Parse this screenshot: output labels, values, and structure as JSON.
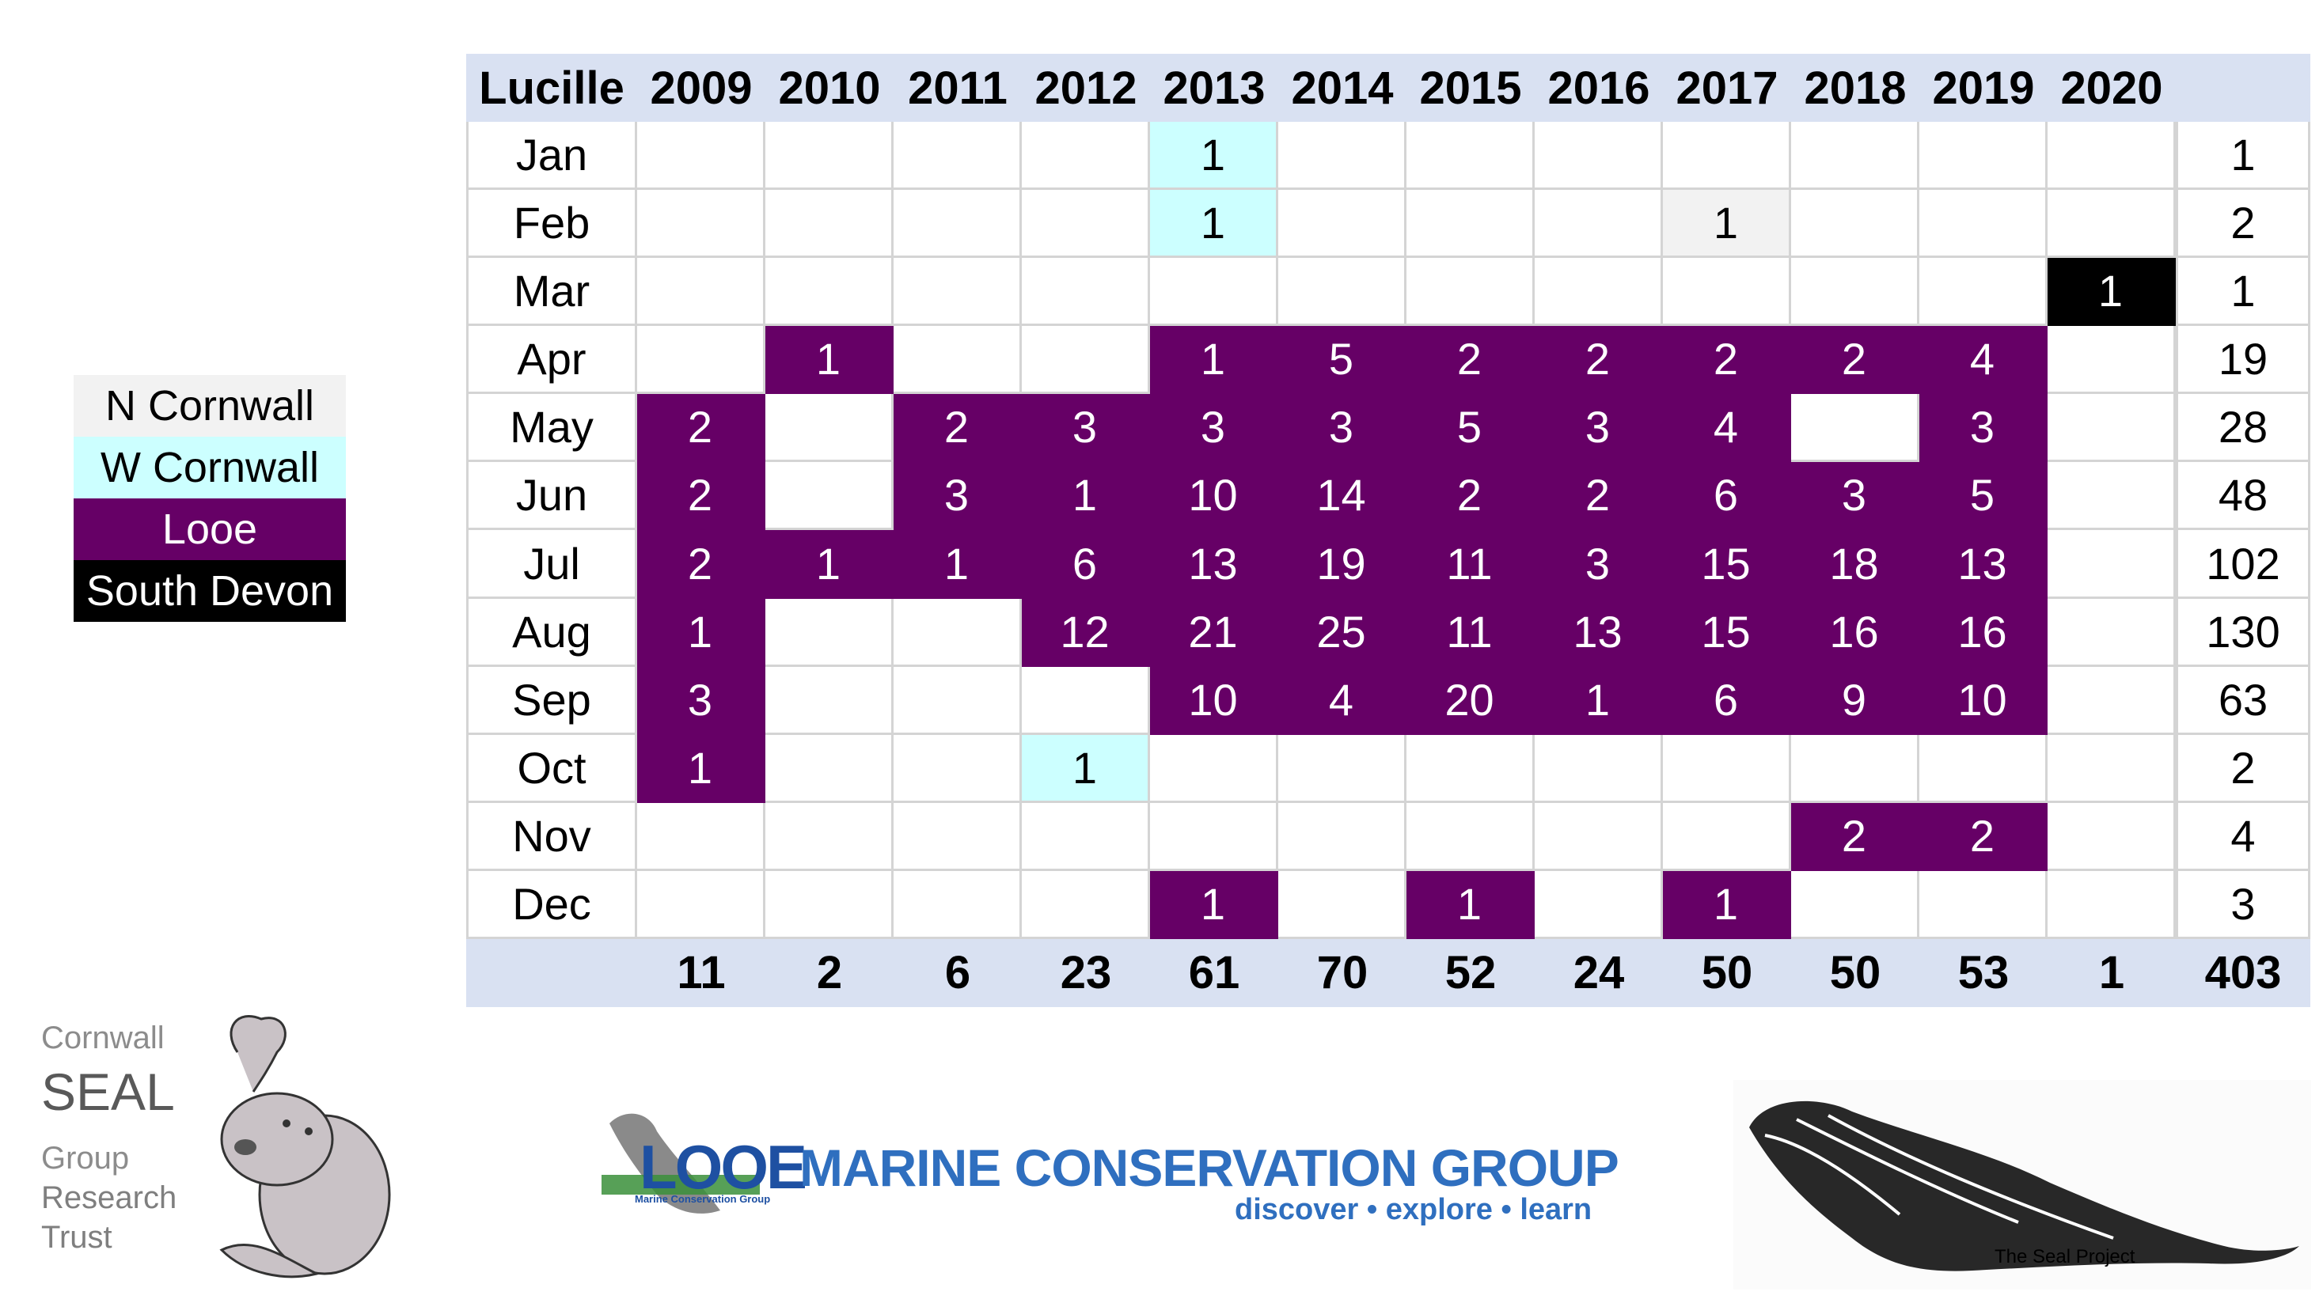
{
  "table": {
    "corner_label": "Lucille",
    "years": [
      "2009",
      "2010",
      "2011",
      "2012",
      "2013",
      "2014",
      "2015",
      "2016",
      "2017",
      "2018",
      "2019",
      "2020"
    ],
    "rows": [
      {
        "month": "Jan",
        "cells": [
          [
            "",
            ""
          ],
          [
            "",
            ""
          ],
          [
            "",
            ""
          ],
          [
            "",
            ""
          ],
          [
            "1",
            "w"
          ],
          [
            "",
            ""
          ],
          [
            "",
            ""
          ],
          [
            "",
            ""
          ],
          [
            "",
            ""
          ],
          [
            "",
            ""
          ],
          [
            "",
            ""
          ],
          [
            "",
            ""
          ]
        ],
        "total": "1"
      },
      {
        "month": "Feb",
        "cells": [
          [
            "",
            ""
          ],
          [
            "",
            ""
          ],
          [
            "",
            ""
          ],
          [
            "",
            ""
          ],
          [
            "1",
            "w"
          ],
          [
            "",
            ""
          ],
          [
            "",
            ""
          ],
          [
            "",
            ""
          ],
          [
            "1",
            "n"
          ],
          [
            "",
            ""
          ],
          [
            "",
            ""
          ],
          [
            "",
            ""
          ]
        ],
        "total": "2"
      },
      {
        "month": "Mar",
        "cells": [
          [
            "",
            ""
          ],
          [
            "",
            ""
          ],
          [
            "",
            ""
          ],
          [
            "",
            ""
          ],
          [
            "",
            ""
          ],
          [
            "",
            ""
          ],
          [
            "",
            ""
          ],
          [
            "",
            ""
          ],
          [
            "",
            ""
          ],
          [
            "",
            ""
          ],
          [
            "",
            ""
          ],
          [
            "1",
            "s"
          ]
        ],
        "total": "1"
      },
      {
        "month": "Apr",
        "cells": [
          [
            "",
            ""
          ],
          [
            "1",
            "l"
          ],
          [
            "",
            ""
          ],
          [
            "",
            ""
          ],
          [
            "1",
            "l"
          ],
          [
            "5",
            "l"
          ],
          [
            "2",
            "l"
          ],
          [
            "2",
            "l"
          ],
          [
            "2",
            "l"
          ],
          [
            "2",
            "l"
          ],
          [
            "4",
            "l"
          ],
          [
            "",
            ""
          ]
        ],
        "total": "19"
      },
      {
        "month": "May",
        "cells": [
          [
            "2",
            "l"
          ],
          [
            "",
            ""
          ],
          [
            "2",
            "l"
          ],
          [
            "3",
            "l"
          ],
          [
            "3",
            "l"
          ],
          [
            "3",
            "l"
          ],
          [
            "5",
            "l"
          ],
          [
            "3",
            "l"
          ],
          [
            "4",
            "l"
          ],
          [
            "",
            ""
          ],
          [
            "3",
            "l"
          ],
          [
            "",
            ""
          ]
        ],
        "total": "28"
      },
      {
        "month": "Jun",
        "cells": [
          [
            "2",
            "l"
          ],
          [
            "",
            ""
          ],
          [
            "3",
            "l"
          ],
          [
            "1",
            "l"
          ],
          [
            "10",
            "l"
          ],
          [
            "14",
            "l"
          ],
          [
            "2",
            "l"
          ],
          [
            "2",
            "l"
          ],
          [
            "6",
            "l"
          ],
          [
            "3",
            "l"
          ],
          [
            "5",
            "l"
          ],
          [
            "",
            ""
          ]
        ],
        "total": "48"
      },
      {
        "month": "Jul",
        "cells": [
          [
            "2",
            "l"
          ],
          [
            "1",
            "l"
          ],
          [
            "1",
            "l"
          ],
          [
            "6",
            "l"
          ],
          [
            "13",
            "l"
          ],
          [
            "19",
            "l"
          ],
          [
            "11",
            "l"
          ],
          [
            "3",
            "l"
          ],
          [
            "15",
            "l"
          ],
          [
            "18",
            "l"
          ],
          [
            "13",
            "l"
          ],
          [
            "",
            ""
          ]
        ],
        "total": "102"
      },
      {
        "month": "Aug",
        "cells": [
          [
            "1",
            "l"
          ],
          [
            "",
            ""
          ],
          [
            "",
            ""
          ],
          [
            "12",
            "l"
          ],
          [
            "21",
            "l"
          ],
          [
            "25",
            "l"
          ],
          [
            "11",
            "l"
          ],
          [
            "13",
            "l"
          ],
          [
            "15",
            "l"
          ],
          [
            "16",
            "l"
          ],
          [
            "16",
            "l"
          ],
          [
            "",
            ""
          ]
        ],
        "total": "130"
      },
      {
        "month": "Sep",
        "cells": [
          [
            "3",
            "l"
          ],
          [
            "",
            ""
          ],
          [
            "",
            ""
          ],
          [
            "",
            ""
          ],
          [
            "10",
            "l"
          ],
          [
            "4",
            "l"
          ],
          [
            "20",
            "l"
          ],
          [
            "1",
            "l"
          ],
          [
            "6",
            "l"
          ],
          [
            "9",
            "l"
          ],
          [
            "10",
            "l"
          ],
          [
            "",
            ""
          ]
        ],
        "total": "63"
      },
      {
        "month": "Oct",
        "cells": [
          [
            "1",
            "l"
          ],
          [
            "",
            ""
          ],
          [
            "",
            ""
          ],
          [
            "1",
            "w"
          ],
          [
            "",
            ""
          ],
          [
            "",
            ""
          ],
          [
            "",
            ""
          ],
          [
            "",
            ""
          ],
          [
            "",
            ""
          ],
          [
            "",
            ""
          ],
          [
            "",
            ""
          ],
          [
            "",
            ""
          ]
        ],
        "total": "2"
      },
      {
        "month": "Nov",
        "cells": [
          [
            "",
            ""
          ],
          [
            "",
            ""
          ],
          [
            "",
            ""
          ],
          [
            "",
            ""
          ],
          [
            "",
            ""
          ],
          [
            "",
            ""
          ],
          [
            "",
            ""
          ],
          [
            "",
            ""
          ],
          [
            "",
            ""
          ],
          [
            "2",
            "l"
          ],
          [
            "2",
            "l"
          ],
          [
            "",
            ""
          ]
        ],
        "total": "4"
      },
      {
        "month": "Dec",
        "cells": [
          [
            "",
            ""
          ],
          [
            "",
            ""
          ],
          [
            "",
            ""
          ],
          [
            "",
            ""
          ],
          [
            "1",
            "l"
          ],
          [
            "",
            ""
          ],
          [
            "1",
            "l"
          ],
          [
            "",
            ""
          ],
          [
            "1",
            "l"
          ],
          [
            "",
            ""
          ],
          [
            "",
            ""
          ],
          [
            "",
            ""
          ]
        ],
        "total": "3"
      }
    ],
    "year_totals": [
      "11",
      "2",
      "6",
      "23",
      "61",
      "70",
      "52",
      "24",
      "50",
      "50",
      "53",
      "1"
    ],
    "grand_total": "403"
  },
  "legend": [
    {
      "key": "n",
      "label": "N Cornwall",
      "bg": "#f2f2f2",
      "fg": "#000000"
    },
    {
      "key": "w",
      "label": "W Cornwall",
      "bg": "#ccffff",
      "fg": "#000000"
    },
    {
      "key": "l",
      "label": "Looe",
      "bg": "#660066",
      "fg": "#ffffff"
    },
    {
      "key": "s",
      "label": "South Devon",
      "bg": "#000000",
      "fg": "#ffffff"
    }
  ],
  "logos": {
    "cswr": {
      "line1": "Cornwall",
      "line2": "SEAL",
      "line3": "Group",
      "line4": "Research",
      "line5": "Trust"
    },
    "looe": {
      "word": "LOOE",
      "small": "Marine Conservation Group",
      "main": "MARINE CONSERVATION GROUP",
      "tagline": "discover • explore • learn"
    },
    "seal_project": {
      "caption": "The Seal Project"
    }
  }
}
